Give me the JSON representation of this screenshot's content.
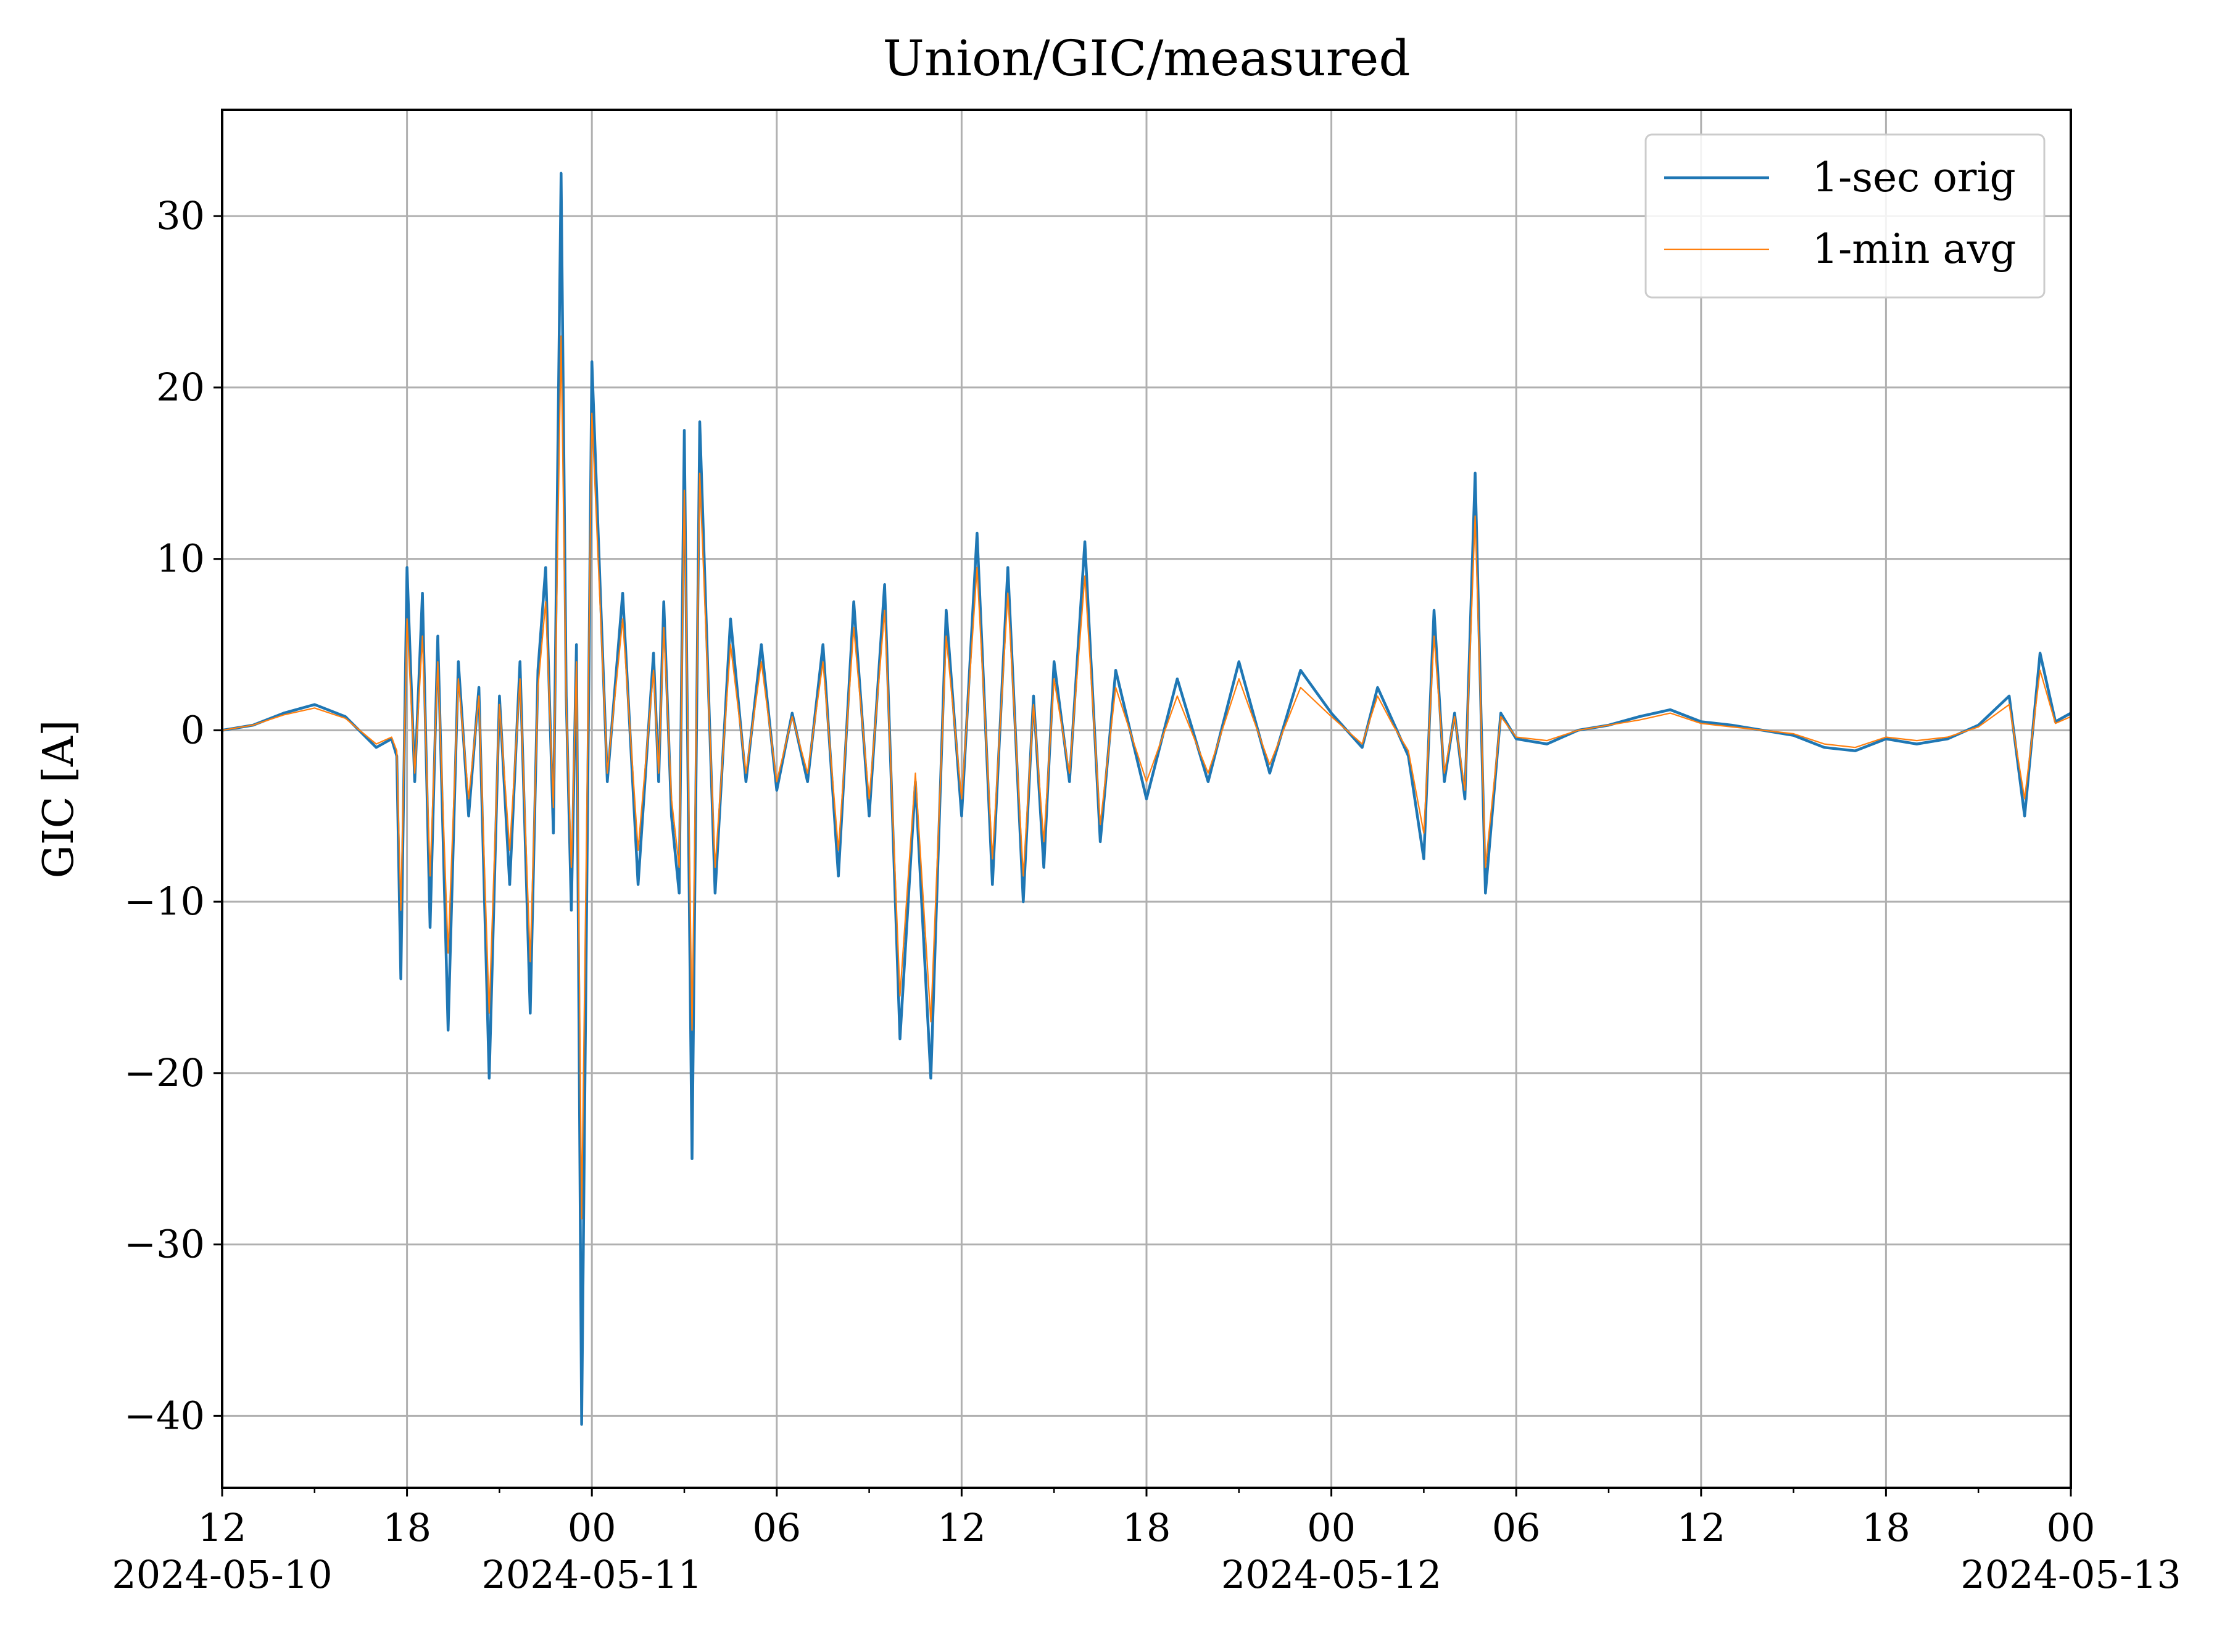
{
  "chart_data": {
    "type": "line",
    "title": "Union/GIC/measured",
    "xlabel": "",
    "ylabel": "GIC [A]",
    "ylim": [
      -44.2,
      36.2
    ],
    "xlim": [
      "2024-05-10T12:00",
      "2024-05-13T00:00"
    ],
    "grid": true,
    "legend_position": "top-right",
    "x_ticks": [
      {
        "value": "2024-05-10T12:00",
        "label": "12",
        "sublabel": "2024-05-10"
      },
      {
        "value": "2024-05-10T18:00",
        "label": "18",
        "sublabel": ""
      },
      {
        "value": "2024-05-11T00:00",
        "label": "00",
        "sublabel": "2024-05-11"
      },
      {
        "value": "2024-05-11T06:00",
        "label": "06",
        "sublabel": ""
      },
      {
        "value": "2024-05-11T12:00",
        "label": "12",
        "sublabel": ""
      },
      {
        "value": "2024-05-11T18:00",
        "label": "18",
        "sublabel": ""
      },
      {
        "value": "2024-05-12T00:00",
        "label": "00",
        "sublabel": "2024-05-12"
      },
      {
        "value": "2024-05-12T06:00",
        "label": "06",
        "sublabel": ""
      },
      {
        "value": "2024-05-12T12:00",
        "label": "12",
        "sublabel": ""
      },
      {
        "value": "2024-05-12T18:00",
        "label": "18",
        "sublabel": ""
      },
      {
        "value": "2024-05-13T00:00",
        "label": "00",
        "sublabel": "2024-05-13"
      }
    ],
    "y_ticks": [
      {
        "value": 30,
        "label": "30"
      },
      {
        "value": 20,
        "label": "20"
      },
      {
        "value": 10,
        "label": "10"
      },
      {
        "value": 0,
        "label": "0"
      },
      {
        "value": -10,
        "label": "−10"
      },
      {
        "value": -20,
        "label": "−20"
      },
      {
        "value": -30,
        "label": "−30"
      },
      {
        "value": -40,
        "label": "−40"
      }
    ],
    "series": [
      {
        "name": "1-sec orig",
        "color": "#1f77b4",
        "x": [
          "2024-05-10T12:00",
          "2024-05-10T13:00",
          "2024-05-10T14:00",
          "2024-05-10T15:00",
          "2024-05-10T16:00",
          "2024-05-10T17:00",
          "2024-05-10T17:30",
          "2024-05-10T17:40",
          "2024-05-10T17:48",
          "2024-05-10T18:00",
          "2024-05-10T18:15",
          "2024-05-10T18:30",
          "2024-05-10T18:45",
          "2024-05-10T19:00",
          "2024-05-10T19:20",
          "2024-05-10T19:40",
          "2024-05-10T20:00",
          "2024-05-10T20:20",
          "2024-05-10T20:40",
          "2024-05-10T21:00",
          "2024-05-10T21:20",
          "2024-05-10T21:40",
          "2024-05-10T22:00",
          "2024-05-10T22:15",
          "2024-05-10T22:30",
          "2024-05-10T22:45",
          "2024-05-10T23:00",
          "2024-05-10T23:10",
          "2024-05-10T23:20",
          "2024-05-10T23:30",
          "2024-05-10T23:40",
          "2024-05-11T00:00",
          "2024-05-11T00:30",
          "2024-05-11T01:00",
          "2024-05-11T01:30",
          "2024-05-11T02:00",
          "2024-05-11T02:10",
          "2024-05-11T02:20",
          "2024-05-11T02:35",
          "2024-05-11T02:50",
          "2024-05-11T03:00",
          "2024-05-11T03:15",
          "2024-05-11T03:30",
          "2024-05-11T04:00",
          "2024-05-11T04:30",
          "2024-05-11T05:00",
          "2024-05-11T05:30",
          "2024-05-11T06:00",
          "2024-05-11T06:30",
          "2024-05-11T07:00",
          "2024-05-11T07:30",
          "2024-05-11T08:00",
          "2024-05-11T08:30",
          "2024-05-11T09:00",
          "2024-05-11T09:30",
          "2024-05-11T10:00",
          "2024-05-11T10:30",
          "2024-05-11T11:00",
          "2024-05-11T11:30",
          "2024-05-11T12:00",
          "2024-05-11T12:30",
          "2024-05-11T13:00",
          "2024-05-11T13:30",
          "2024-05-11T14:00",
          "2024-05-11T14:20",
          "2024-05-11T14:40",
          "2024-05-11T15:00",
          "2024-05-11T15:30",
          "2024-05-11T16:00",
          "2024-05-11T16:30",
          "2024-05-11T17:00",
          "2024-05-11T18:00",
          "2024-05-11T19:00",
          "2024-05-11T20:00",
          "2024-05-11T21:00",
          "2024-05-11T22:00",
          "2024-05-11T23:00",
          "2024-05-12T00:00",
          "2024-05-12T01:00",
          "2024-05-12T01:30",
          "2024-05-12T02:00",
          "2024-05-12T02:30",
          "2024-05-12T03:00",
          "2024-05-12T03:20",
          "2024-05-12T03:40",
          "2024-05-12T04:00",
          "2024-05-12T04:20",
          "2024-05-12T04:40",
          "2024-05-12T05:00",
          "2024-05-12T05:30",
          "2024-05-12T06:00",
          "2024-05-12T07:00",
          "2024-05-12T08:00",
          "2024-05-12T09:00",
          "2024-05-12T10:00",
          "2024-05-12T11:00",
          "2024-05-12T12:00",
          "2024-05-12T13:00",
          "2024-05-12T14:00",
          "2024-05-12T15:00",
          "2024-05-12T16:00",
          "2024-05-12T17:00",
          "2024-05-12T18:00",
          "2024-05-12T19:00",
          "2024-05-12T20:00",
          "2024-05-12T21:00",
          "2024-05-12T22:00",
          "2024-05-12T22:30",
          "2024-05-12T23:00",
          "2024-05-12T23:30",
          "2024-05-13T00:00"
        ],
        "y": [
          0.0,
          0.3,
          1.0,
          1.5,
          0.8,
          -1.0,
          -0.5,
          -1.5,
          -14.5,
          9.5,
          -3.0,
          8.0,
          -11.5,
          5.5,
          -17.5,
          4.0,
          -5.0,
          2.5,
          -20.3,
          2.0,
          -9.0,
          4.0,
          -16.5,
          3.5,
          9.5,
          -6.0,
          32.5,
          2.0,
          -10.5,
          5.0,
          -40.5,
          21.5,
          -3.0,
          8.0,
          -9.0,
          4.5,
          -3.0,
          7.5,
          -5.0,
          -9.5,
          17.5,
          -25.0,
          18.0,
          -9.5,
          6.5,
          -3.0,
          5.0,
          -3.5,
          1.0,
          -3.0,
          5.0,
          -8.5,
          7.5,
          -5.0,
          8.5,
          -18.0,
          -3.0,
          -20.3,
          7.0,
          -5.0,
          11.5,
          -9.0,
          9.5,
          -10.0,
          2.0,
          -8.0,
          4.0,
          -3.0,
          11.0,
          -6.5,
          3.5,
          -4.0,
          3.0,
          -3.0,
          4.0,
          -2.5,
          3.5,
          1.0,
          -1.0,
          2.5,
          0.5,
          -1.5,
          -7.5,
          7.0,
          -3.0,
          1.0,
          -4.0,
          15.0,
          -9.5,
          1.0,
          -0.5,
          -0.8,
          0.0,
          0.3,
          0.8,
          1.2,
          0.5,
          0.3,
          0.0,
          -0.3,
          -1.0,
          -1.2,
          -0.5,
          -0.8,
          -0.5,
          0.3,
          2.0,
          -5.0,
          4.5,
          0.5,
          1.0
        ]
      },
      {
        "name": "1-min avg",
        "color": "#ff7f0e",
        "x": [
          "2024-05-10T12:00",
          "2024-05-10T13:00",
          "2024-05-10T14:00",
          "2024-05-10T15:00",
          "2024-05-10T16:00",
          "2024-05-10T17:00",
          "2024-05-10T17:30",
          "2024-05-10T17:40",
          "2024-05-10T17:48",
          "2024-05-10T18:00",
          "2024-05-10T18:15",
          "2024-05-10T18:30",
          "2024-05-10T18:45",
          "2024-05-10T19:00",
          "2024-05-10T19:20",
          "2024-05-10T19:40",
          "2024-05-10T20:00",
          "2024-05-10T20:20",
          "2024-05-10T20:40",
          "2024-05-10T21:00",
          "2024-05-10T21:20",
          "2024-05-10T21:40",
          "2024-05-10T22:00",
          "2024-05-10T22:15",
          "2024-05-10T22:30",
          "2024-05-10T22:45",
          "2024-05-10T23:00",
          "2024-05-10T23:10",
          "2024-05-10T23:20",
          "2024-05-10T23:30",
          "2024-05-10T23:40",
          "2024-05-11T00:00",
          "2024-05-11T00:30",
          "2024-05-11T01:00",
          "2024-05-11T01:30",
          "2024-05-11T02:00",
          "2024-05-11T02:10",
          "2024-05-11T02:20",
          "2024-05-11T02:35",
          "2024-05-11T02:50",
          "2024-05-11T03:00",
          "2024-05-11T03:15",
          "2024-05-11T03:30",
          "2024-05-11T04:00",
          "2024-05-11T04:30",
          "2024-05-11T05:00",
          "2024-05-11T05:30",
          "2024-05-11T06:00",
          "2024-05-11T06:30",
          "2024-05-11T07:00",
          "2024-05-11T07:30",
          "2024-05-11T08:00",
          "2024-05-11T08:30",
          "2024-05-11T09:00",
          "2024-05-11T09:30",
          "2024-05-11T10:00",
          "2024-05-11T10:30",
          "2024-05-11T11:00",
          "2024-05-11T11:30",
          "2024-05-11T12:00",
          "2024-05-11T12:30",
          "2024-05-11T13:00",
          "2024-05-11T13:30",
          "2024-05-11T14:00",
          "2024-05-11T14:20",
          "2024-05-11T14:40",
          "2024-05-11T15:00",
          "2024-05-11T15:30",
          "2024-05-11T16:00",
          "2024-05-11T16:30",
          "2024-05-11T17:00",
          "2024-05-11T18:00",
          "2024-05-11T19:00",
          "2024-05-11T20:00",
          "2024-05-11T21:00",
          "2024-05-11T22:00",
          "2024-05-11T23:00",
          "2024-05-12T00:00",
          "2024-05-12T01:00",
          "2024-05-12T01:30",
          "2024-05-12T02:00",
          "2024-05-12T02:30",
          "2024-05-12T03:00",
          "2024-05-12T03:20",
          "2024-05-12T03:40",
          "2024-05-12T04:00",
          "2024-05-12T04:20",
          "2024-05-12T04:40",
          "2024-05-12T05:00",
          "2024-05-12T05:30",
          "2024-05-12T06:00",
          "2024-05-12T07:00",
          "2024-05-12T08:00",
          "2024-05-12T09:00",
          "2024-05-12T10:00",
          "2024-05-12T11:00",
          "2024-05-12T12:00",
          "2024-05-12T13:00",
          "2024-05-12T14:00",
          "2024-05-12T15:00",
          "2024-05-12T16:00",
          "2024-05-12T17:00",
          "2024-05-12T18:00",
          "2024-05-12T19:00",
          "2024-05-12T20:00",
          "2024-05-12T21:00",
          "2024-05-12T22:00",
          "2024-05-12T22:30",
          "2024-05-12T23:00",
          "2024-05-12T23:30",
          "2024-05-13T00:00"
        ],
        "y": [
          0.0,
          0.3,
          0.9,
          1.3,
          0.7,
          -0.8,
          -0.4,
          -1.2,
          -10.5,
          6.5,
          -2.5,
          5.5,
          -8.5,
          4.0,
          -13.0,
          3.0,
          -4.0,
          2.0,
          -16.5,
          1.5,
          -7.0,
          3.0,
          -13.5,
          2.5,
          7.5,
          -4.5,
          23.0,
          1.5,
          -8.0,
          4.0,
          -28.5,
          18.5,
          -2.5,
          6.5,
          -7.0,
          3.5,
          -2.5,
          6.0,
          -4.0,
          -8.0,
          14.0,
          -17.5,
          15.0,
          -8.0,
          5.0,
          -2.5,
          4.0,
          -3.0,
          0.8,
          -2.5,
          4.0,
          -7.0,
          6.0,
          -4.0,
          7.0,
          -15.5,
          -2.5,
          -17.0,
          5.5,
          -4.0,
          9.5,
          -7.5,
          8.0,
          -8.5,
          1.5,
          -6.5,
          3.0,
          -2.5,
          9.0,
          -5.5,
          2.5,
          -3.0,
          2.0,
          -2.5,
          3.0,
          -2.0,
          2.5,
          0.8,
          -0.8,
          2.0,
          0.3,
          -1.2,
          -6.0,
          5.5,
          -2.5,
          0.8,
          -3.5,
          12.5,
          -8.0,
          0.8,
          -0.4,
          -0.6,
          0.0,
          0.3,
          0.6,
          1.0,
          0.4,
          0.2,
          0.0,
          -0.2,
          -0.8,
          -1.0,
          -0.4,
          -0.6,
          -0.4,
          0.2,
          1.5,
          -4.0,
          3.5,
          0.4,
          0.8
        ]
      }
    ]
  }
}
